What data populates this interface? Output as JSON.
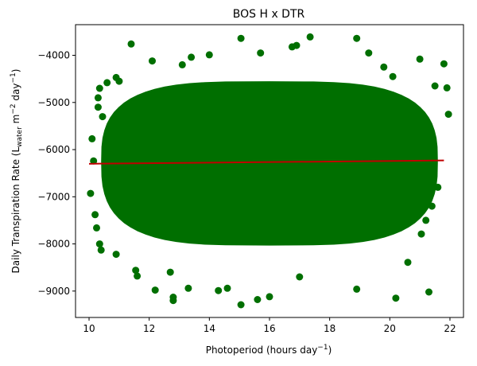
{
  "chart_data": {
    "type": "scatter",
    "title": "BOS H x DTR",
    "xlabel": {
      "main": "Photoperiod (hours day",
      "sup": "−1",
      "tail": ")"
    },
    "ylabel": {
      "p1": "Daily Transpiration Rate (L",
      "sub": "water",
      "p2": " m",
      "sup1": "−2",
      "p3": " day",
      "sup2": "−1",
      "p4": ")"
    },
    "xlim": [
      9.55,
      22.45
    ],
    "ylim": [
      -9560,
      -3350
    ],
    "xticks": [
      10,
      12,
      14,
      16,
      18,
      20,
      22
    ],
    "xtick_labels": [
      "10",
      "12",
      "14",
      "16",
      "18",
      "20",
      "22"
    ],
    "yticks": [
      -9000,
      -8000,
      -7000,
      -6000,
      -5000,
      -4000
    ],
    "ytick_labels": [
      "−9000",
      "−8000",
      "−7000",
      "−6000",
      "−5000",
      "−4000"
    ],
    "point_color": "#006f00",
    "line_color": "#c00000",
    "fit_line": {
      "x": [
        10.0,
        21.8
      ],
      "y": [
        -6300,
        -6230
      ]
    },
    "points": [
      [
        11.4,
        -3760
      ],
      [
        15.05,
        -3640
      ],
      [
        16.9,
        -3790
      ],
      [
        17.35,
        -3610
      ],
      [
        18.9,
        -3640
      ],
      [
        19.3,
        -3950
      ],
      [
        14.0,
        -3990
      ],
      [
        12.1,
        -4120
      ],
      [
        13.4,
        -4040
      ],
      [
        15.7,
        -3950
      ],
      [
        21.8,
        -4180
      ],
      [
        21.0,
        -4080
      ],
      [
        10.6,
        -4580
      ],
      [
        10.9,
        -4470
      ],
      [
        10.35,
        -4700
      ],
      [
        10.3,
        -4900
      ],
      [
        10.3,
        -5100
      ],
      [
        21.9,
        -4690
      ],
      [
        21.95,
        -5250
      ],
      [
        10.1,
        -5770
      ],
      [
        10.15,
        -6240
      ],
      [
        10.05,
        -6930
      ],
      [
        10.2,
        -7380
      ],
      [
        10.25,
        -7660
      ],
      [
        10.35,
        -8000
      ],
      [
        10.4,
        -8130
      ],
      [
        10.9,
        -8220
      ],
      [
        11.55,
        -8560
      ],
      [
        11.6,
        -8680
      ],
      [
        12.2,
        -8980
      ],
      [
        12.7,
        -8600
      ],
      [
        12.8,
        -9130
      ],
      [
        12.8,
        -9200
      ],
      [
        13.3,
        -8940
      ],
      [
        14.3,
        -8990
      ],
      [
        14.6,
        -8940
      ],
      [
        15.05,
        -9290
      ],
      [
        15.6,
        -9180
      ],
      [
        18.9,
        -8960
      ],
      [
        20.2,
        -9150
      ],
      [
        21.3,
        -9020
      ],
      [
        21.05,
        -7790
      ],
      [
        20.6,
        -8390
      ],
      [
        16.0,
        -9120
      ],
      [
        17.0,
        -8700
      ],
      [
        16.75,
        -3820
      ],
      [
        13.1,
        -4200
      ],
      [
        19.8,
        -4250
      ],
      [
        20.1,
        -4450
      ],
      [
        11.0,
        -4550
      ],
      [
        21.2,
        -7500
      ],
      [
        21.4,
        -7200
      ],
      [
        21.6,
        -6800
      ],
      [
        10.45,
        -5300
      ],
      [
        21.5,
        -4650
      ]
    ]
  }
}
